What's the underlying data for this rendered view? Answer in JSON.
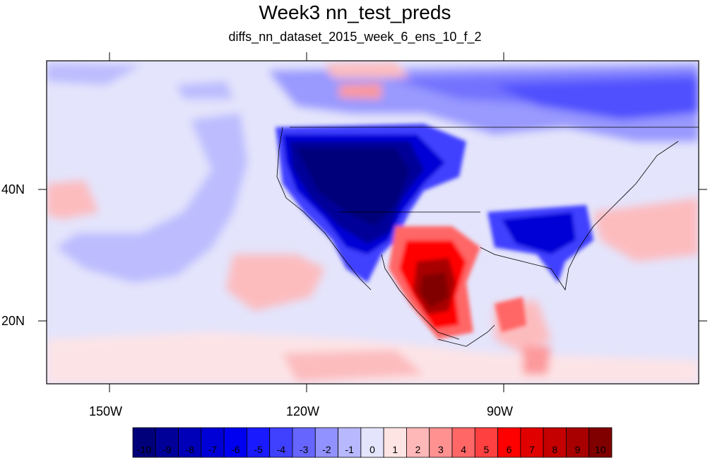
{
  "title": "Week3 nn_test_preds",
  "subtitle": "diffs_nn_dataset_2015_week_6_ens_10_f_2",
  "axes": {
    "lon_labels": [
      "150W",
      "120W",
      "90W"
    ],
    "lat_labels": [
      "40N",
      "20N"
    ]
  },
  "colorbar": {
    "labels": [
      "-10",
      "-9",
      "-8",
      "-7",
      "-6",
      "-5",
      "-4",
      "-3",
      "-2",
      "-1",
      "0",
      "1",
      "2",
      "3",
      "4",
      "5",
      "6",
      "7",
      "8",
      "9",
      "10"
    ],
    "colors": [
      "#00007a",
      "#000099",
      "#0000b8",
      "#0000d6",
      "#0000f0",
      "#1a1aff",
      "#4040ff",
      "#6666ff",
      "#9191ff",
      "#b8b8ff",
      "#e4e4fc",
      "#ffe4e4",
      "#ffb8b8",
      "#ff9191",
      "#ff6666",
      "#ff4040",
      "#ff0000",
      "#e00000",
      "#c40000",
      "#a80000",
      "#800000"
    ]
  }
}
